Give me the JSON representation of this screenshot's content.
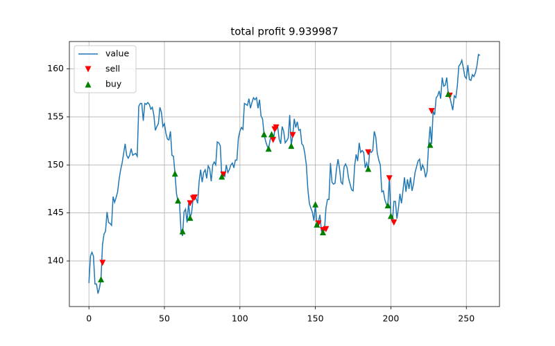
{
  "chart_data": {
    "type": "line",
    "title": "total profit 9.939987",
    "xlim": [
      -12.95,
      271.95
    ],
    "ylim": [
      135.25,
      162.85
    ],
    "xticks": [
      0,
      50,
      100,
      150,
      200,
      250
    ],
    "yticks": [
      140,
      145,
      150,
      155,
      160
    ],
    "grid": true,
    "legend": "upper left",
    "series": [
      {
        "name": "value",
        "type": "line",
        "color": "#1f77b4",
        "x": [
          0,
          1,
          2,
          3,
          4,
          5,
          6,
          7,
          8,
          9,
          10,
          11,
          12,
          13,
          14,
          15,
          16,
          17,
          18,
          19,
          20,
          21,
          22,
          23,
          24,
          25,
          26,
          27,
          28,
          29,
          30,
          31,
          32,
          33,
          34,
          35,
          36,
          37,
          38,
          39,
          40,
          41,
          42,
          43,
          44,
          45,
          46,
          47,
          48,
          49,
          50,
          51,
          52,
          53,
          54,
          55,
          56,
          57,
          58,
          59,
          60,
          61,
          62,
          63,
          64,
          65,
          66,
          67,
          68,
          69,
          70,
          71,
          72,
          73,
          74,
          75,
          76,
          77,
          78,
          79,
          80,
          81,
          82,
          83,
          84,
          85,
          86,
          87,
          88,
          89,
          90,
          91,
          92,
          93,
          94,
          95,
          96,
          97,
          98,
          99,
          100,
          101,
          102,
          103,
          104,
          105,
          106,
          107,
          108,
          109,
          110,
          111,
          112,
          113,
          114,
          115,
          116,
          117,
          118,
          119,
          120,
          121,
          122,
          123,
          124,
          125,
          126,
          127,
          128,
          129,
          130,
          131,
          132,
          133,
          134,
          135,
          136,
          137,
          138,
          139,
          140,
          141,
          142,
          143,
          144,
          145,
          146,
          147,
          148,
          149,
          150,
          151,
          152,
          153,
          154,
          155,
          156,
          157,
          158,
          159,
          160,
          161,
          162,
          163,
          164,
          165,
          166,
          167,
          168,
          169,
          170,
          171,
          172,
          173,
          174,
          175,
          176,
          177,
          178,
          179,
          180,
          181,
          182,
          183,
          184,
          185,
          186,
          187,
          188,
          189,
          190,
          191,
          192,
          193,
          194,
          195,
          196,
          197,
          198,
          199,
          200,
          201,
          202,
          203,
          204,
          205,
          206,
          207,
          208,
          209,
          210,
          211,
          212,
          213,
          214,
          215,
          216,
          217,
          218,
          219,
          220,
          221,
          222,
          223,
          224,
          225,
          226,
          227,
          228,
          229,
          230,
          231,
          232,
          233,
          234,
          235,
          236,
          237,
          238,
          239,
          240,
          241,
          242,
          243,
          244,
          245,
          246,
          247,
          248,
          249,
          250,
          251,
          252,
          253,
          254,
          255,
          256,
          257,
          258,
          259
        ],
        "values": [
          137.7,
          140.5,
          140.9,
          140.5,
          137.6,
          137.6,
          136.6,
          137.2,
          138.1,
          141.7,
          142.8,
          143.1,
          145.1,
          144.0,
          143.9,
          143.7,
          146.7,
          146.1,
          146.6,
          147.2,
          148.5,
          149.5,
          150.2,
          151.2,
          152.2,
          151.0,
          150.7,
          151.0,
          151.7,
          151.0,
          151.1,
          151.2,
          150.9,
          156.1,
          156.4,
          156.4,
          154.6,
          156.4,
          156.3,
          156.5,
          156.3,
          155.8,
          156.0,
          155.2,
          153.6,
          154.0,
          154.3,
          156.0,
          155.5,
          154.0,
          154.3,
          153.3,
          152.7,
          152.6,
          153.5,
          151.0,
          150.9,
          149.1,
          147.0,
          146.2,
          146.0,
          143.1,
          142.6,
          145.1,
          145.4,
          144.0,
          146.0,
          144.5,
          145.0,
          146.5,
          146.6,
          146.5,
          146.0,
          148.3,
          149.5,
          148.2,
          149.2,
          149.5,
          148.6,
          149.9,
          149.6,
          148.3,
          150.0,
          150.3,
          150.0,
          152.4,
          152.3,
          152.0,
          148.8,
          149.0,
          148.8,
          150.0,
          149.2,
          149.5,
          150.0,
          150.2,
          149.7,
          150.5,
          150.5,
          152.8,
          153.5,
          153.9,
          153.7,
          156.4,
          156.3,
          156.2,
          156.9,
          155.9,
          156.5,
          157.0,
          156.8,
          157.0,
          155.9,
          156.8,
          155.1,
          154.8,
          153.2,
          152.5,
          152.0,
          151.7,
          152.6,
          153.2,
          152.4,
          153.5,
          153.7,
          154.0,
          152.7,
          152.2,
          154.0,
          153.5,
          152.3,
          152.5,
          152.8,
          155.2,
          152.0,
          153.1,
          154.8,
          153.9,
          154.5,
          153.6,
          153.7,
          152.2,
          152.0,
          151.2,
          150.0,
          147.5,
          146.0,
          145.5,
          145.1,
          144.2,
          145.9,
          143.8,
          144.1,
          144.8,
          143.1,
          143.0,
          143.2,
          145.5,
          146.4,
          146.4,
          150.2,
          148.2,
          148.0,
          148.1,
          149.6,
          150.6,
          149.6,
          148.2,
          148.0,
          149.8,
          150.1,
          149.7,
          148.6,
          148.0,
          147.4,
          147.3,
          149.9,
          151.1,
          150.4,
          152.3,
          151.3,
          151.5,
          151.3,
          149.7,
          150.2,
          149.5,
          151.5,
          151.3,
          151.5,
          153.5,
          152.9,
          151.2,
          150.5,
          150.0,
          147.2,
          147.3,
          146.4,
          145.9,
          145.8,
          148.6,
          144.7,
          144.0,
          146.2,
          146.2,
          144.4,
          145.5,
          147.0,
          146.0,
          147.3,
          148.7,
          147.2,
          148.5,
          147.5,
          148.7,
          147.3,
          148.0,
          149.2,
          149.8,
          150.4,
          150.6,
          149.4,
          150.0,
          149.6,
          148.7,
          149.3,
          152.1,
          154.0,
          152.2,
          155.6,
          155.2,
          157.0,
          157.2,
          157.7,
          156.9,
          159.1,
          158.2,
          158.3,
          159.1,
          157.4,
          157.1,
          156.4,
          155.7,
          157.2,
          157.0,
          158.2,
          160.3,
          160.5,
          160.9,
          160.1,
          159.2,
          159.0,
          160.4,
          158.9,
          158.8,
          159.4,
          159.2,
          159.6,
          160.3,
          161.5,
          161.4
        ]
      },
      {
        "name": "sell",
        "type": "scatter",
        "marker": "v",
        "color": "#ff0000",
        "x": [
          9,
          67,
          69,
          70,
          89,
          122,
          123,
          124,
          135,
          152,
          155,
          157,
          185,
          199,
          202,
          227,
          239
        ],
        "values": [
          139.8,
          146.0,
          146.5,
          146.6,
          149.0,
          152.6,
          153.7,
          153.9,
          153.1,
          143.9,
          143.2,
          143.3,
          151.3,
          148.6,
          144.0,
          155.6,
          157.2
        ]
      },
      {
        "name": "buy",
        "type": "scatter",
        "marker": "^",
        "color": "#008000",
        "x": [
          8,
          57,
          59,
          62,
          67,
          88,
          116,
          119,
          121,
          134,
          150,
          151,
          155,
          185,
          198,
          200,
          226,
          238
        ],
        "values": [
          138.1,
          149.1,
          146.3,
          143.1,
          144.5,
          148.8,
          153.2,
          151.7,
          153.2,
          152.0,
          145.9,
          143.8,
          143.0,
          149.6,
          145.8,
          144.7,
          152.1,
          157.4
        ]
      }
    ]
  }
}
